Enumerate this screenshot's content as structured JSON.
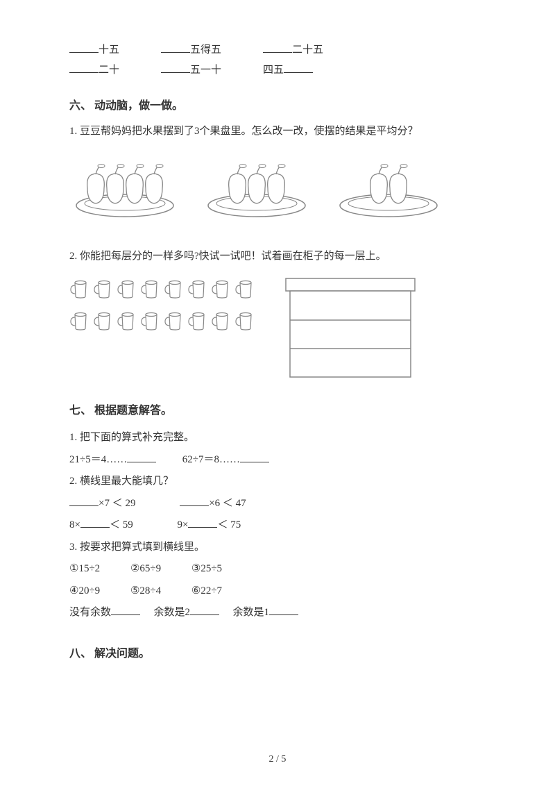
{
  "top_blanks": {
    "row1": [
      {
        "suffix": "十五"
      },
      {
        "suffix": "五得五"
      },
      {
        "suffix": "二十五"
      }
    ],
    "row2": [
      {
        "suffix": "二十"
      },
      {
        "suffix": "五一十"
      },
      {
        "prefix": "四五"
      }
    ]
  },
  "section6": {
    "heading": "六、 动动脑，做一做。",
    "q1": "1. 豆豆帮妈妈把水果摆到了3个果盘里。怎么改一改，使摆的结果是平均分？",
    "plate_counts": [
      4,
      3,
      2
    ],
    "q2": "2. 你能把每层分的一样多吗?快试一试吧！试着画在柜子的每一层上。",
    "cup_rows": [
      8,
      8
    ],
    "shelf_layers": 3
  },
  "section7": {
    "heading": "七、 根据题意解答。",
    "q1_label": "1. 把下面的算式补充完整。",
    "q1_items": [
      "21÷5＝4……",
      "62÷7＝8……"
    ],
    "q2_label": "2. 横线里最大能填几？",
    "q2_row1": [
      {
        "before_blank": "",
        "after_blank": "×7 ＜ 29"
      },
      {
        "before_blank": "",
        "after_blank": "×6 ＜ 47"
      }
    ],
    "q2_row2": [
      {
        "before_blank": "8×",
        "after_blank": "＜ 59"
      },
      {
        "before_blank": "9×",
        "after_blank": "＜ 75"
      }
    ],
    "q3_label": "3. 按要求把算式填到横线里。",
    "q3_options_row1": [
      "①15÷2",
      "②65÷9",
      "③25÷5"
    ],
    "q3_options_row2": [
      "④20÷9",
      "⑤28÷4",
      "⑥22÷7"
    ],
    "q3_answers": [
      "没有余数",
      "余数是2",
      "余数是1"
    ]
  },
  "section8": {
    "heading": "八、 解决问题。"
  },
  "page_num": "2 / 5",
  "colors": {
    "stroke": "#888888",
    "fill": "#ffffff",
    "text": "#333333"
  }
}
